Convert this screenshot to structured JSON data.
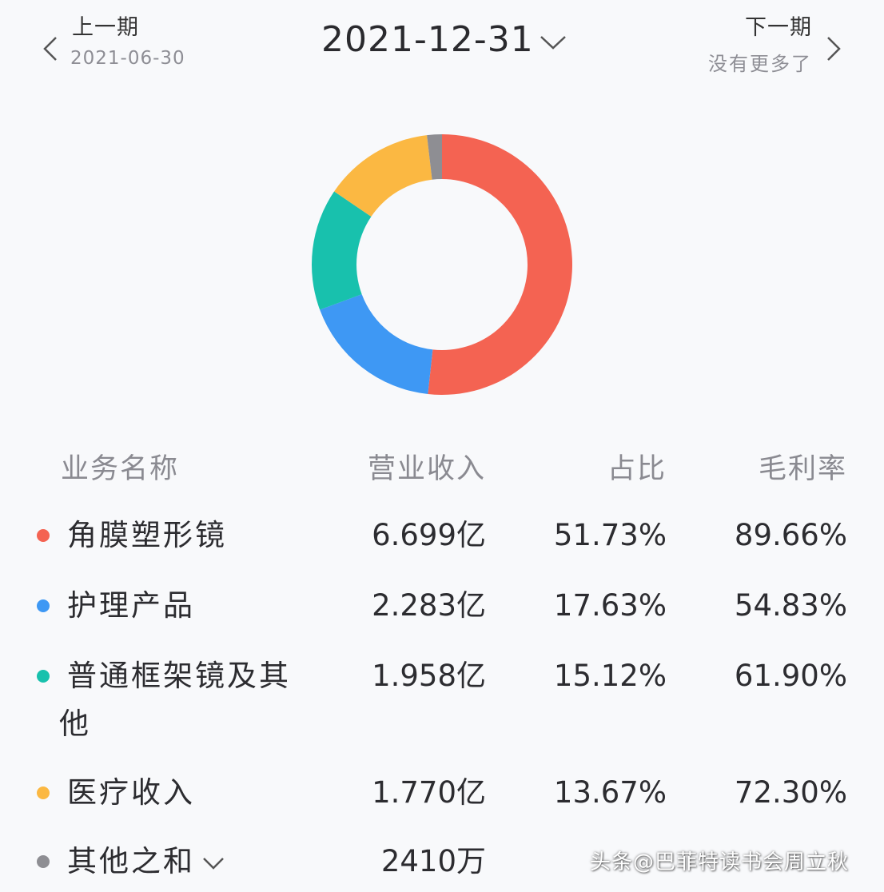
{
  "header": {
    "prev_label": "上一期",
    "prev_date": "2021-06-30",
    "current_date": "2021-12-31",
    "next_label": "下一期",
    "next_sub": "没有更多了"
  },
  "table": {
    "headers": [
      "业务名称",
      "营业收入",
      "占比",
      "毛利率"
    ],
    "rows": [
      {
        "name": "角膜塑形镜",
        "revenue": "6.699亿",
        "share": "51.73%",
        "margin": "89.66%",
        "color": "#f46352"
      },
      {
        "name": "护理产品",
        "revenue": "2.283亿",
        "share": "17.63%",
        "margin": "54.83%",
        "color": "#3e98f4"
      },
      {
        "name": "普通框架镜及其他",
        "revenue": "1.958亿",
        "share": "15.12%",
        "margin": "61.90%",
        "color": "#18c1ad"
      },
      {
        "name": "医疗收入",
        "revenue": "1.770亿",
        "share": "13.67%",
        "margin": "72.30%",
        "color": "#fbb842"
      },
      {
        "name": "其他之和",
        "revenue": "2410万",
        "share": "",
        "margin": "",
        "color": "#8e8e93"
      }
    ]
  },
  "chart_data": {
    "type": "pie",
    "categories": [
      "角膜塑形镜",
      "护理产品",
      "普通框架镜及其他",
      "医疗收入",
      "其他之和"
    ],
    "values": [
      51.73,
      17.63,
      15.12,
      13.67,
      1.85
    ],
    "colors": [
      "#f46352",
      "#3e98f4",
      "#18c1ad",
      "#fbb842",
      "#8e8e93"
    ],
    "legend": "none"
  },
  "watermark": "头条@巴菲特读书会周立秋"
}
